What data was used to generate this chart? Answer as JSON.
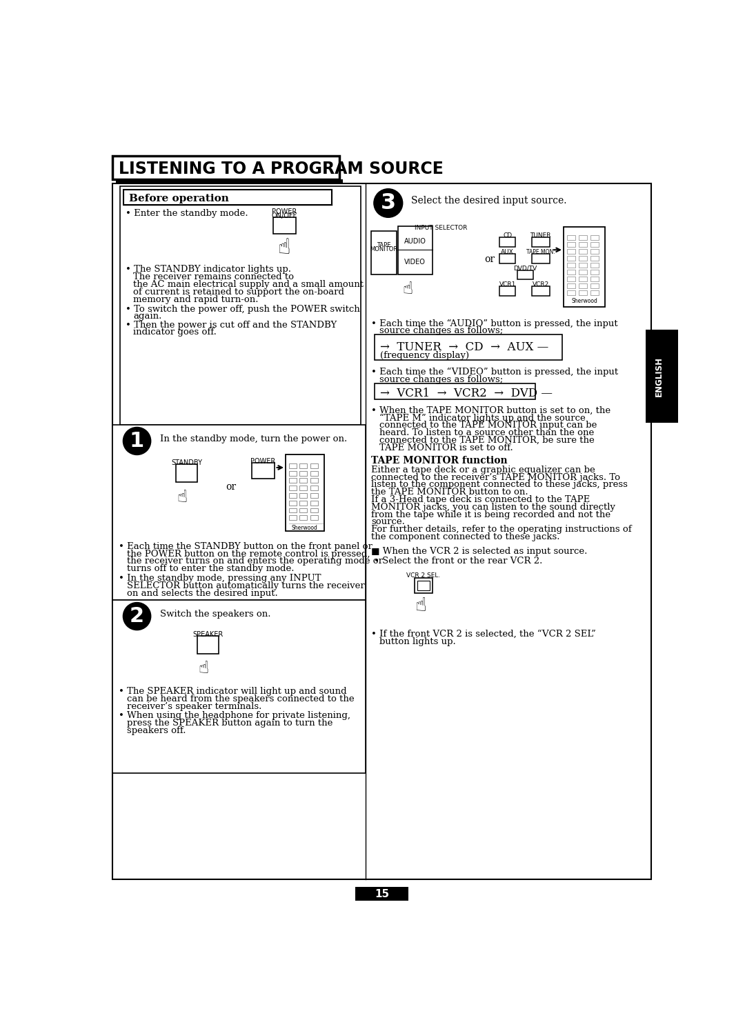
{
  "title": "LISTENING TO A PROGRAM SOURCE",
  "bg_color": "#ffffff",
  "page_number": "15",
  "before_op_header": "Before operation",
  "before_op_bullets": [
    "Enter the standby mode.",
    "• The STANDBY indicator lights up.",
    "The receiver remains connected to",
    "the AC main electrical supply and a small amount",
    "of current is retained to support the on-board",
    "memory and rapid turn-on.",
    "• To switch the power off, push the POWER switch",
    "again.",
    "• Then the power is cut off and the STANDBY",
    "indicator goes off."
  ],
  "step1_text": "In the standby mode, turn the power on.",
  "step1_bullets": [
    "• Each time the STANDBY button on the front panel or",
    "the POWER button on the remote control is pressed,",
    "the receiver turns on and enters the operating mode or",
    "turns off to enter the standby mode.",
    "• In the standby mode, pressing any INPUT",
    "SELECTOR button automatically turns the receiver",
    "on and selects the desired input."
  ],
  "step2_text": "Switch the speakers on.",
  "step2_bullets": [
    "• The SPEAKER indicator will light up and sound",
    "can be heard from the speakers connected to the",
    "receiver’s speaker terminals.",
    "• When using the headphone for private listening,",
    "press the SPEAKER button again to turn the",
    "speakers off."
  ],
  "step3_text": "Select the desired input source.",
  "audio_bullet1": "• Each time the “AUDIO” button is pressed, the input",
  "audio_bullet2": "source changes as follows;",
  "audio_chain": "→  TUNER  →  CD  →  AUX —",
  "audio_sub": "(frequency display)",
  "video_bullet1": "• Each time the “VIDEO” button is pressed, the input",
  "video_bullet2": "source changes as follows;",
  "video_chain": "→  VCR1  →  VCR2  →  DVD —",
  "tape_bullet_lines": [
    "• When the TAPE MONITOR button is set to on, the",
    "“TAPE M” indicator lights up and the source",
    "connected to the TAPE MONITOR input can be",
    "heard. To listen to a source other than the one",
    "connected to the TAPE MONITOR, be sure the",
    "TAPE MONITOR is set to off."
  ],
  "tape_header": "TAPE MONITOR function",
  "tape_body": [
    "Either a tape deck or a graphic equalizer can be",
    "connected to the receiver’s TAPE MONITOR jacks. To",
    "listen to the component connected to these jacks, press",
    "the TAPE MONITOR button to on.",
    "If a 3-Head tape deck is connected to the TAPE",
    "MONITOR jacks, you can listen to the sound directly",
    "from the tape while it is being recorded and not the",
    "source.",
    "For further details, refer to the operating instructions of",
    "the component connected to these jacks."
  ],
  "vcr2_line1": "■ When the VCR 2 is selected as input source.",
  "vcr2_line2": "• Select the front or the rear VCR 2.",
  "vcr2_label": "VCR 2 SEL.",
  "vcr2_final": "• If the front VCR 2 is selected, the “VCR 2 SEL”",
  "vcr2_final2": "button lights up.",
  "english_tab": "ENGLISH"
}
